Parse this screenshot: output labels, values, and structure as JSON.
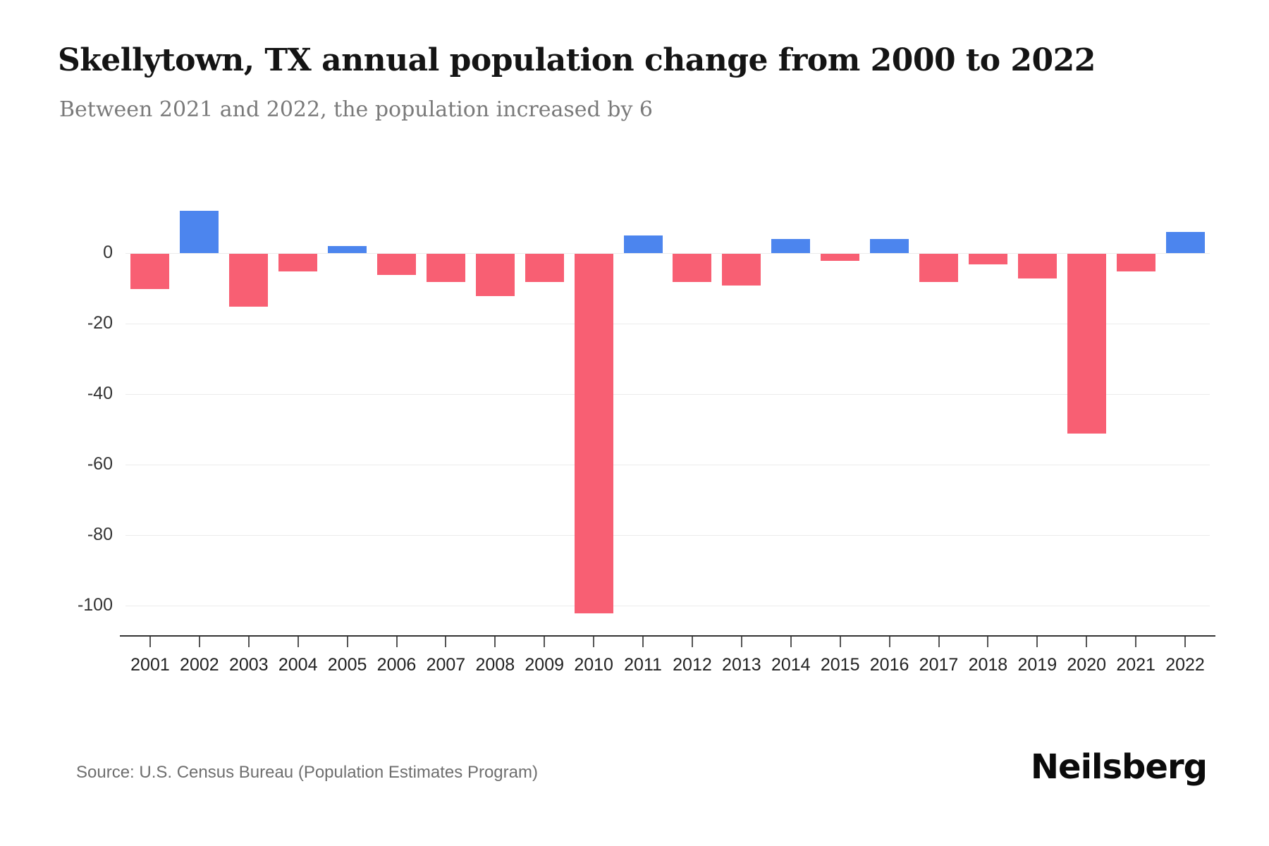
{
  "chart_data": {
    "type": "bar",
    "title": "Skellytown, TX annual population change from 2000 to 2022",
    "subtitle": "Between 2021 and 2022, the population increased by 6",
    "series_name": "Annual population change",
    "categories": [
      "2001",
      "2002",
      "2003",
      "2004",
      "2005",
      "2006",
      "2007",
      "2008",
      "2009",
      "2010",
      "2011",
      "2012",
      "2013",
      "2014",
      "2015",
      "2016",
      "2017",
      "2018",
      "2019",
      "2020",
      "2021",
      "2022"
    ],
    "values": [
      -10,
      12,
      -15,
      -5,
      2,
      -6,
      -8,
      -12,
      -8,
      -102,
      5,
      -8,
      -9,
      4,
      -2,
      4,
      -8,
      -3,
      -7,
      -51,
      -5,
      6
    ],
    "ylim": [
      -110,
      15
    ],
    "grid": true,
    "legend": "none",
    "y_ticks": [
      {
        "value": 0,
        "label": "0"
      },
      {
        "value": -20,
        "label": "-20"
      },
      {
        "value": -40,
        "label": "-40"
      },
      {
        "value": -60,
        "label": "-60"
      },
      {
        "value": -80,
        "label": "-80"
      },
      {
        "value": -100,
        "label": "-100"
      }
    ],
    "colors": {
      "positive": "#4c85ee",
      "negative": "#f85f73"
    }
  },
  "footer": {
    "source": "Source: U.S. Census Bureau (Population Estimates Program)",
    "brand": "Neilsberg"
  }
}
